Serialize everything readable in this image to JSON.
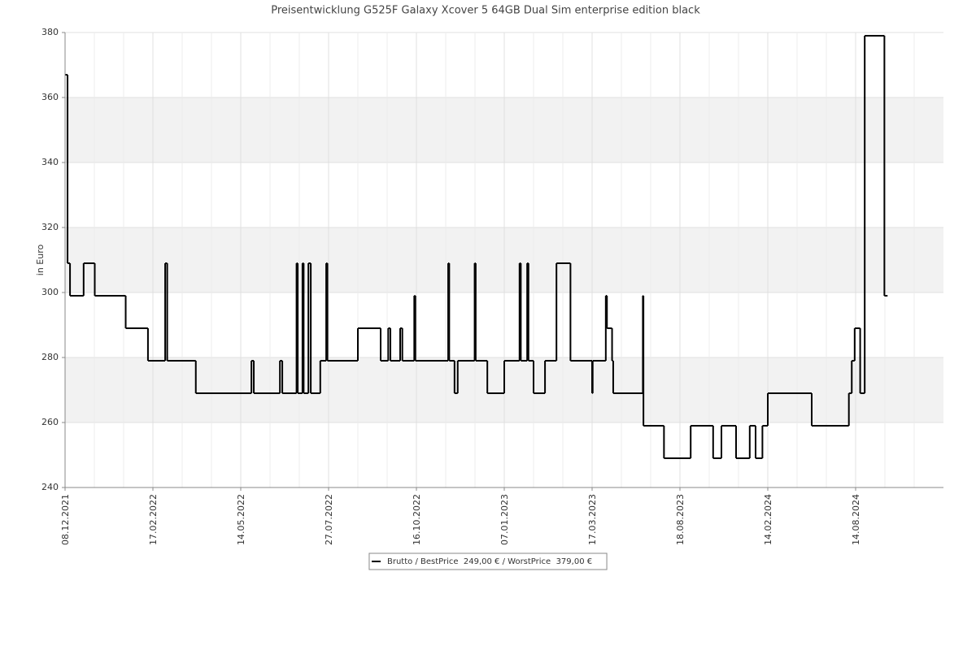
{
  "chart_data": {
    "type": "step-line",
    "title": "Preisentwicklung G525F Galaxy Xcover 5 64GB Dual Sim enterprise edition black",
    "y_label": "in Euro",
    "xlim": [
      "08.12.2021",
      "11.10.2024"
    ],
    "xticks": [
      "08.12.2021",
      "17.02.2022",
      "14.05.2022",
      "27.07.2022",
      "16.10.2022",
      "07.01.2023",
      "17.03.2023",
      "18.08.2023",
      "14.02.2024",
      "14.08.2024"
    ],
    "ylim": [
      240,
      380
    ],
    "yticks": [
      240,
      260,
      280,
      300,
      320,
      340,
      360,
      380
    ],
    "grid": true,
    "band_color": "#f2f2f2",
    "series": [
      {
        "name": "Brutto / BestPrice  249,00 € / WorstPrice  379,00 €",
        "color": "#000000",
        "x": [
          "08.12.2021",
          "10.12.2021",
          "12.12.2021",
          "23.12.2021",
          "01.01.2022",
          "26.01.2022",
          "13.02.2022",
          "01.03.2022",
          "03.03.2022",
          "31.03.2022",
          "23.05.2022",
          "25.05.2022",
          "16.06.2022",
          "18.06.2022",
          "30.06.2022",
          "01.07.2022",
          "05.07.2022",
          "06.07.2022",
          "10.07.2022",
          "12.07.2022",
          "20.07.2022",
          "25.07.2022",
          "26.07.2022",
          "23.08.2022",
          "13.09.2022",
          "20.09.2022",
          "22.09.2022",
          "01.10.2022",
          "03.10.2022",
          "14.10.2022",
          "15.10.2022",
          "15.11.2022",
          "16.11.2022",
          "21.11.2022",
          "24.11.2022",
          "10.12.2022",
          "11.12.2022",
          "22.12.2022",
          "07.01.2023",
          "19.01.2023",
          "20.01.2023",
          "25.01.2023",
          "26.01.2023",
          "30.01.2023",
          "08.02.2023",
          "17.02.2023",
          "28.02.2023",
          "17.03.2023",
          "18.03.2023",
          "10.04.2023",
          "12.04.2023",
          "21.04.2023",
          "23.04.2023",
          "14.06.2023",
          "15.06.2023",
          "21.07.2023",
          "09.09.2023",
          "25.10.2023",
          "11.11.2023",
          "11.12.2023",
          "08.01.2024",
          "20.01.2024",
          "03.02.2024",
          "14.02.2024",
          "15.05.2024",
          "31.07.2024",
          "06.08.2024",
          "12.08.2024",
          "17.08.2024",
          "20.08.2024",
          "02.09.2024",
          "03.09.2024"
        ],
        "values": [
          367,
          309,
          299,
          309,
          299,
          289,
          279,
          309,
          279,
          269,
          279,
          269,
          279,
          269,
          309,
          269,
          309,
          269,
          309,
          269,
          279,
          309,
          279,
          289,
          279,
          289,
          279,
          289,
          279,
          299,
          279,
          309,
          279,
          269,
          279,
          309,
          279,
          269,
          279,
          309,
          279,
          309,
          279,
          269,
          279,
          309,
          279,
          269,
          279,
          299,
          289,
          279,
          269,
          299,
          259,
          249,
          259,
          249,
          259,
          249,
          259,
          249,
          259,
          269,
          259,
          269,
          279,
          289,
          269,
          379,
          299,
          299
        ]
      }
    ]
  }
}
